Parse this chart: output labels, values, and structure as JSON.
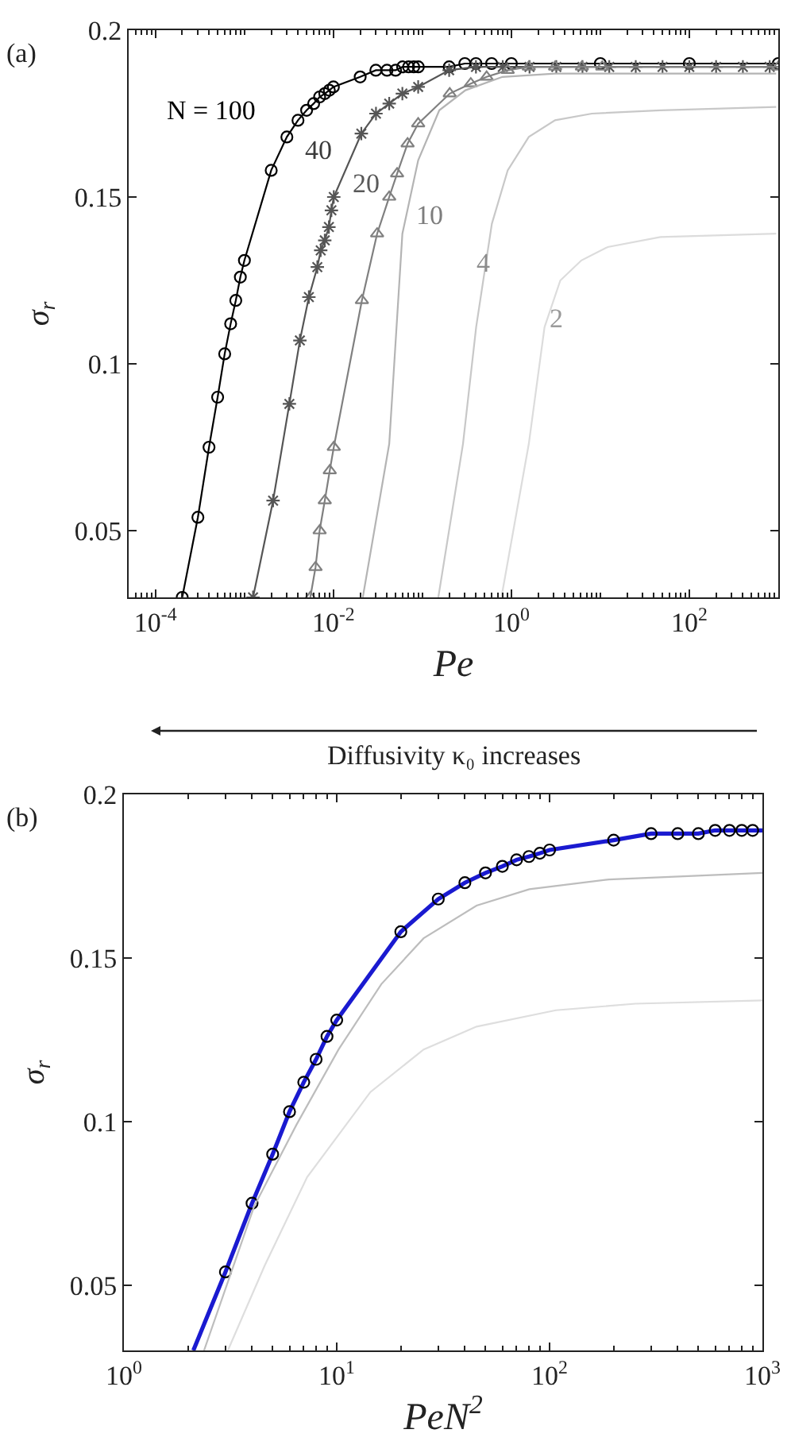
{
  "chart_data": [
    {
      "type": "line",
      "xlabel": "Pe",
      "ylabel": "σ$_{r}$",
      "log": "x",
      "grid": false,
      "xlim": [
        5e-05,
        1000
      ],
      "xticks": [
        {
          "value": 0.0001,
          "label": "10$^{-4}$"
        },
        {
          "value": 0.01,
          "label": "10$^{-2}$"
        },
        {
          "value": 1,
          "label": "10$^{0}$"
        },
        {
          "value": 100,
          "label": "10$^{2}$"
        }
      ],
      "ylim": [
        0.03,
        0.2
      ],
      "yticks": [
        0.05,
        0.1,
        0.15,
        0.2
      ],
      "series": [
        {
          "color": "#000000",
          "marker": "circle",
          "x": [
            0.0002,
            0.0003,
            0.0004,
            0.0005,
            0.0006,
            0.0007,
            0.0008,
            0.0009,
            0.001,
            0.002,
            0.003,
            0.004,
            0.005,
            0.006,
            0.007,
            0.008,
            0.009,
            0.01,
            0.02,
            0.03,
            0.04,
            0.05,
            0.06,
            0.07,
            0.08,
            0.09,
            0.2,
            0.3,
            0.4,
            0.6,
            1,
            10,
            100,
            1000
          ],
          "values": [
            0.03,
            0.054,
            0.075,
            0.09,
            0.103,
            0.112,
            0.119,
            0.126,
            0.131,
            0.158,
            0.168,
            0.173,
            0.176,
            0.178,
            0.18,
            0.181,
            0.182,
            0.183,
            0.186,
            0.188,
            0.188,
            0.188,
            0.189,
            0.189,
            0.189,
            0.189,
            0.189,
            0.19,
            0.19,
            0.19,
            0.19,
            0.19,
            0.19,
            0.19
          ]
        },
        {
          "color": "#555555",
          "marker": "cross",
          "x": [
            0.00125,
            0.0021,
            0.0032,
            0.0042,
            0.0053,
            0.0066,
            0.0072,
            0.008,
            0.0089,
            0.0095,
            0.0101,
            0.0206,
            0.0301,
            0.0424,
            0.0596,
            0.0897,
            0.2,
            0.4,
            0.8,
            1.6,
            3.2,
            6.3,
            12.6,
            25,
            50,
            100,
            200,
            400,
            800
          ],
          "values": [
            0.03,
            0.059,
            0.088,
            0.107,
            0.12,
            0.129,
            0.134,
            0.137,
            0.141,
            0.146,
            0.15,
            0.169,
            0.175,
            0.178,
            0.181,
            0.183,
            0.188,
            0.189,
            0.189,
            0.189,
            0.189,
            0.189,
            0.189,
            0.189,
            0.189,
            0.189,
            0.189,
            0.189,
            0.189
          ]
        },
        {
          "color": "#808080",
          "marker": "triangle",
          "x": [
            0.0055,
            0.0063,
            0.007,
            0.008,
            0.0091,
            0.0101,
            0.0209,
            0.031,
            0.0424,
            0.052,
            0.0682,
            0.0897,
            0.203,
            0.35,
            0.527,
            0.91,
            1.57,
            3.1,
            6.2,
            10.5,
            1000
          ],
          "values": [
            0.03,
            0.039,
            0.05,
            0.059,
            0.068,
            0.075,
            0.119,
            0.139,
            0.15,
            0.157,
            0.166,
            0.172,
            0.181,
            0.184,
            0.186,
            0.188,
            0.189,
            0.189,
            0.189,
            0.189,
            0.189
          ]
        },
        {
          "color": "#b4b4b4",
          "marker": "none",
          "x": [
            0.0214,
            0.0424,
            0.0596,
            0.0897,
            0.155,
            0.305,
            0.794,
            3.1,
            23.9,
            946
          ],
          "values": [
            0.03,
            0.076,
            0.139,
            0.161,
            0.176,
            0.182,
            0.186,
            0.187,
            0.187,
            0.187
          ]
        },
        {
          "color": "#c8c8c8",
          "marker": "none",
          "x": [
            0.151,
            0.286,
            0.402,
            0.604,
            0.91,
            1.57,
            3.1,
            8.04,
            47.3,
            946
          ],
          "values": [
            0.03,
            0.076,
            0.111,
            0.142,
            0.158,
            0.168,
            0.173,
            0.175,
            0.176,
            0.177
          ]
        },
        {
          "color": "#dcdcdc",
          "marker": "none",
          "x": [
            0.773,
            1.57,
            2.36,
            3.55,
            6.12,
            12.1,
            47.3,
            946
          ],
          "values": [
            0.03,
            0.076,
            0.111,
            0.125,
            0.131,
            0.135,
            0.138,
            0.139
          ]
        }
      ],
      "annotations": [
        "(a)",
        "Diffusivity κ₀ increases",
        "N = 100",
        "40",
        "20",
        "10",
        "4",
        "2"
      ]
    },
    {
      "type": "line",
      "xlabel": "PeN$^{2}$",
      "ylabel": "σ$_{r}$",
      "log": "x",
      "grid": false,
      "xlim": [
        1,
        1000
      ],
      "xticks": [
        {
          "value": 1,
          "label": "10$^{0}$"
        },
        {
          "value": 10,
          "label": "10$^{1}$"
        },
        {
          "value": 100,
          "label": "10$^{2}$"
        },
        {
          "value": 1000,
          "label": "10$^{3}$"
        }
      ],
      "ylim": [
        0.03,
        0.2
      ],
      "yticks": [
        0.05,
        0.1,
        0.15,
        0.2
      ],
      "series": [
        {
          "color": "#1a1ad0",
          "marker": "none",
          "x": [
            2.12,
            3,
            4,
            5,
            6,
            7,
            8,
            9,
            10,
            20,
            30,
            40,
            50,
            60,
            70,
            80,
            90,
            100,
            200,
            300,
            400,
            500,
            600,
            700,
            800,
            900,
            1000
          ],
          "values": [
            0.03,
            0.054,
            0.075,
            0.09,
            0.103,
            0.112,
            0.119,
            0.126,
            0.131,
            0.158,
            0.168,
            0.173,
            0.176,
            0.178,
            0.18,
            0.181,
            0.182,
            0.183,
            0.186,
            0.188,
            0.188,
            0.188,
            0.189,
            0.189,
            0.189,
            0.189,
            0.189
          ]
        },
        {
          "type": "scatter",
          "color": "#000000",
          "marker": "circle",
          "x": [
            3,
            4,
            5,
            6,
            7,
            8,
            9,
            10,
            20,
            30,
            40,
            50,
            60,
            70,
            80,
            90,
            100,
            200,
            300,
            400,
            500,
            600,
            700,
            800,
            900
          ],
          "values": [
            0.054,
            0.075,
            0.09,
            0.103,
            0.112,
            0.119,
            0.126,
            0.131,
            0.158,
            0.168,
            0.173,
            0.176,
            0.178,
            0.18,
            0.181,
            0.182,
            0.183,
            0.186,
            0.188,
            0.188,
            0.188,
            0.189,
            0.189,
            0.189,
            0.189
          ]
        },
        {
          "color": "#bdbdbd",
          "marker": "none",
          "x": [
            2.38,
            4.09,
            6.47,
            10.2,
            16.2,
            25.6,
            45.4,
            80.4,
            190,
            449,
            1000
          ],
          "values": [
            0.03,
            0.074,
            0.099,
            0.122,
            0.142,
            0.156,
            0.166,
            0.171,
            0.174,
            0.175,
            0.176
          ]
        },
        {
          "color": "#dedede",
          "marker": "none",
          "x": [
            3.08,
            4.59,
            7.26,
            14.4,
            25.6,
            45.4,
            107,
            253,
            1000
          ],
          "values": [
            0.03,
            0.056,
            0.083,
            0.109,
            0.122,
            0.129,
            0.134,
            0.136,
            0.137
          ]
        }
      ],
      "annotations": [
        "(b)"
      ]
    }
  ]
}
